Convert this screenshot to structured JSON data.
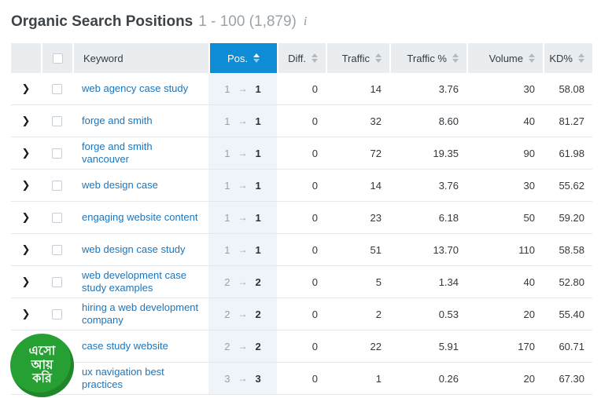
{
  "header": {
    "title": "Organic Search Positions",
    "range": "1 - 100 (1,879)",
    "info_icon": "i"
  },
  "glyphs": {
    "expand": "❯",
    "pos_arrow": "→"
  },
  "colors": {
    "accent_blue": "#0f8cd6",
    "link_blue": "#1b75bc",
    "header_bg": "#e9edf0",
    "pos_col_bg": "#eef4f9",
    "logo_green": "#27a033"
  },
  "table": {
    "columns": {
      "keyword": "Keyword",
      "pos": "Pos.",
      "diff": "Diff.",
      "traffic": "Traffic",
      "traffic_pct": "Traffic %",
      "volume": "Volume",
      "kd": "KD%"
    },
    "rows": [
      {
        "keyword": "web agency case study",
        "pos_from": "1",
        "pos_to": "1",
        "diff": "0",
        "traffic": "14",
        "traffic_pct": "3.76",
        "volume": "30",
        "kd": "58.08"
      },
      {
        "keyword": "forge and smith",
        "pos_from": "1",
        "pos_to": "1",
        "diff": "0",
        "traffic": "32",
        "traffic_pct": "8.60",
        "volume": "40",
        "kd": "81.27"
      },
      {
        "keyword": "forge and smith vancouver",
        "pos_from": "1",
        "pos_to": "1",
        "diff": "0",
        "traffic": "72",
        "traffic_pct": "19.35",
        "volume": "90",
        "kd": "61.98"
      },
      {
        "keyword": "web design case",
        "pos_from": "1",
        "pos_to": "1",
        "diff": "0",
        "traffic": "14",
        "traffic_pct": "3.76",
        "volume": "30",
        "kd": "55.62"
      },
      {
        "keyword": "engaging website content",
        "pos_from": "1",
        "pos_to": "1",
        "diff": "0",
        "traffic": "23",
        "traffic_pct": "6.18",
        "volume": "50",
        "kd": "59.20"
      },
      {
        "keyword": "web design case study",
        "pos_from": "1",
        "pos_to": "1",
        "diff": "0",
        "traffic": "51",
        "traffic_pct": "13.70",
        "volume": "110",
        "kd": "58.58"
      },
      {
        "keyword": "web development case study examples",
        "pos_from": "2",
        "pos_to": "2",
        "diff": "0",
        "traffic": "5",
        "traffic_pct": "1.34",
        "volume": "40",
        "kd": "52.80"
      },
      {
        "keyword": "hiring a web development company",
        "pos_from": "2",
        "pos_to": "2",
        "diff": "0",
        "traffic": "2",
        "traffic_pct": "0.53",
        "volume": "20",
        "kd": "55.40"
      },
      {
        "keyword": "case study website",
        "pos_from": "2",
        "pos_to": "2",
        "diff": "0",
        "traffic": "22",
        "traffic_pct": "5.91",
        "volume": "170",
        "kd": "60.71"
      },
      {
        "keyword": "ux navigation best practices",
        "pos_from": "3",
        "pos_to": "3",
        "diff": "0",
        "traffic": "1",
        "traffic_pct": "0.26",
        "volume": "20",
        "kd": "67.30"
      }
    ]
  },
  "logo": {
    "lines": [
      "এসো",
      "আয়",
      "করি"
    ]
  }
}
